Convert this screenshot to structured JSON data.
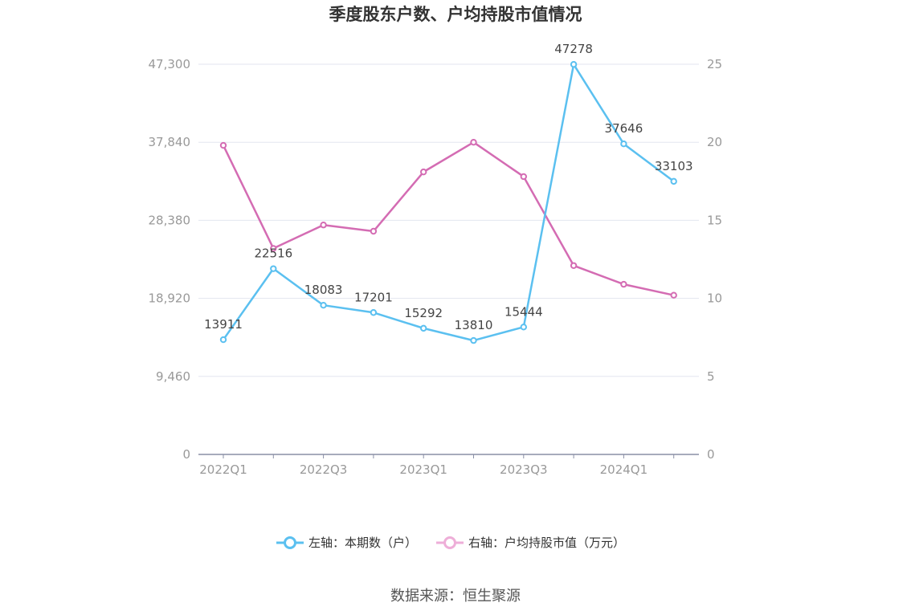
{
  "chart_data": {
    "type": "line",
    "title": "季度股东户数、户均持股市值情况",
    "x": [
      "2022Q1",
      "2022Q2",
      "2022Q3",
      "2022Q4",
      "2023Q1",
      "2023Q2",
      "2023Q3",
      "2023Q4",
      "2024Q1",
      "2024Q2"
    ],
    "x_tick_labels": [
      "2022Q1",
      "2022Q3",
      "2023Q1",
      "2023Q3",
      "2024Q1"
    ],
    "left_axis": {
      "ylim": [
        0,
        47300
      ],
      "ticks": [
        0,
        9460,
        18920,
        28380,
        37840,
        47300
      ],
      "tick_labels": [
        "0",
        "9,460",
        "18,920",
        "28,380",
        "37,840",
        "47,300"
      ]
    },
    "right_axis": {
      "ylim": [
        0,
        25
      ],
      "ticks": [
        0,
        5,
        10,
        15,
        20,
        25
      ],
      "tick_labels": [
        "0",
        "5",
        "10",
        "15",
        "20",
        "25"
      ]
    },
    "series": [
      {
        "name": "左轴：本期数（户）",
        "axis": "left",
        "color": "#5bc0f0",
        "values": [
          13911,
          22516,
          18083,
          17201,
          15292,
          13810,
          15444,
          47278,
          37646,
          33103
        ],
        "labels": [
          "13911",
          "22516",
          "18083",
          "17201",
          "15292",
          "13810",
          "15444",
          "47278",
          "37646",
          "33103"
        ]
      },
      {
        "name": "右轴：户均持股市值（万元）",
        "axis": "right",
        "color": "#d46cb3",
        "values": [
          19.8,
          13.2,
          14.7,
          14.3,
          18.1,
          20.0,
          17.8,
          12.1,
          10.9,
          10.2
        ]
      }
    ],
    "grid": true,
    "legend_position": "bottom"
  },
  "source": "数据来源：恒生聚源"
}
